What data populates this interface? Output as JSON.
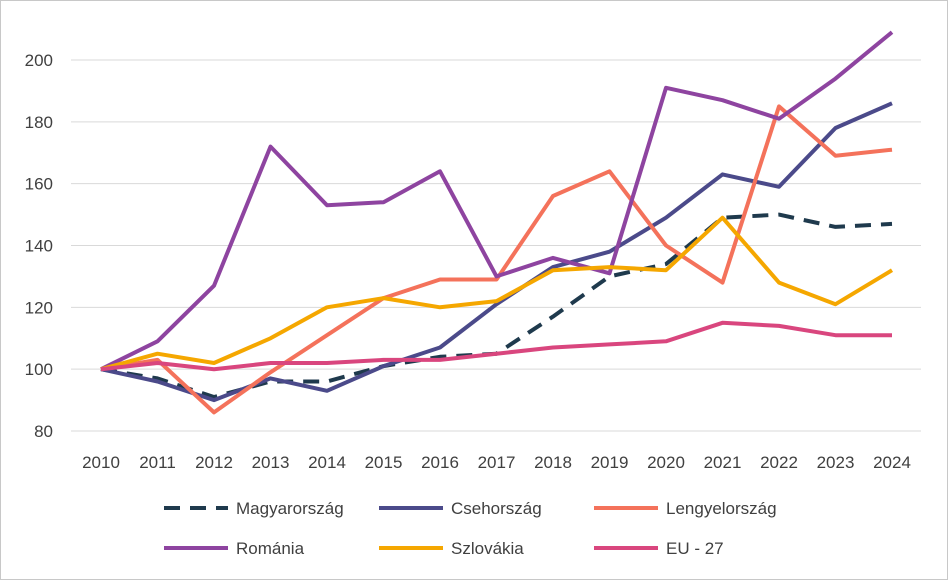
{
  "chart_data": {
    "type": "line",
    "title": "",
    "xlabel": "",
    "ylabel": "",
    "ylim": [
      80,
      210
    ],
    "y_ticks": [
      80,
      100,
      120,
      140,
      160,
      180,
      200
    ],
    "grid": true,
    "legend_position": "bottom",
    "categories": [
      "2010",
      "2011",
      "2012",
      "2013",
      "2014",
      "2015",
      "2016",
      "2017",
      "2018",
      "2019",
      "2020",
      "2021",
      "2022",
      "2023",
      "2024"
    ],
    "series": [
      {
        "name": "Magyarország",
        "color": "#1f3a4d",
        "dash": "dashed",
        "values": [
          100,
          97,
          91,
          96,
          96,
          101,
          104,
          105,
          117,
          130,
          134,
          149,
          150,
          146,
          147
        ]
      },
      {
        "name": "Csehország",
        "color": "#4b4a8a",
        "dash": "solid",
        "values": [
          100,
          96,
          90,
          97,
          93,
          101,
          107,
          121,
          133,
          138,
          149,
          163,
          159,
          178,
          186
        ]
      },
      {
        "name": "Lengyelország",
        "color": "#f4725b",
        "dash": "solid",
        "values": [
          100,
          103,
          86,
          99,
          111,
          123,
          129,
          129,
          156,
          164,
          140,
          128,
          185,
          169,
          171
        ]
      },
      {
        "name": "Románia",
        "color": "#8e44a0",
        "dash": "solid",
        "values": [
          100,
          109,
          127,
          172,
          153,
          154,
          164,
          130,
          136,
          131,
          191,
          187,
          181,
          194,
          209
        ]
      },
      {
        "name": "Szlovákia",
        "color": "#f5a700",
        "dash": "solid",
        "values": [
          100,
          105,
          102,
          110,
          120,
          123,
          120,
          122,
          132,
          133,
          132,
          149,
          128,
          121,
          132
        ]
      },
      {
        "name": "EU - 27",
        "color": "#d9467e",
        "dash": "solid",
        "values": [
          100,
          102,
          100,
          102,
          102,
          103,
          103,
          105,
          107,
          108,
          109,
          115,
          114,
          111,
          111
        ]
      }
    ]
  }
}
